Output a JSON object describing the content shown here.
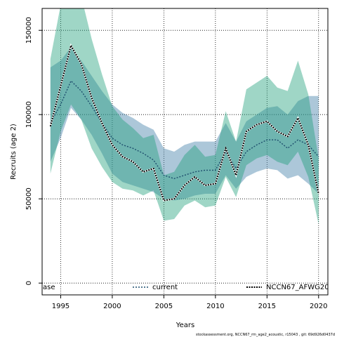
{
  "chart_data": {
    "type": "line",
    "title": "",
    "xlabel": "Years",
    "ylabel": "Recruits (age 2)",
    "xlim": [
      1993.2,
      2020.9
    ],
    "ylim": [
      -7000,
      163000
    ],
    "x_ticks": [
      1995,
      2000,
      2005,
      2010,
      2015,
      2020
    ],
    "y_ticks": [
      0,
      50000,
      100000,
      150000
    ],
    "grid": "dotted",
    "x": [
      1994,
      1995,
      1996,
      1997,
      1998,
      1999,
      2000,
      2001,
      2002,
      2003,
      2004,
      2005,
      2006,
      2007,
      2008,
      2009,
      2010,
      2011,
      2012,
      2013,
      2014,
      2015,
      2016,
      2017,
      2018,
      2019,
      2020
    ],
    "series": [
      {
        "name": "current",
        "color": "#377EB8",
        "values": [
          95000,
          106000,
          120000,
          114000,
          105000,
          95000,
          86000,
          82000,
          80000,
          77000,
          73000,
          64000,
          62000,
          64000,
          66000,
          67000,
          67000,
          78000,
          68000,
          78000,
          82000,
          85000,
          85000,
          80000,
          85000,
          82000,
          75000
        ],
        "lower": [
          72000,
          86000,
          104000,
          97000,
          88000,
          77000,
          65000,
          60000,
          58000,
          56000,
          54000,
          50000,
          49000,
          50000,
          52000,
          53000,
          53000,
          64000,
          56000,
          63000,
          66000,
          68000,
          67000,
          62000,
          64000,
          59000,
          53000
        ],
        "upper": [
          128000,
          132000,
          140000,
          132000,
          123000,
          114000,
          106000,
          101000,
          98000,
          94000,
          91000,
          80000,
          78000,
          82000,
          84000,
          84000,
          84000,
          95000,
          84000,
          96000,
          100000,
          104000,
          105000,
          100000,
          108000,
          111000,
          111000
        ]
      },
      {
        "name": "NCCN67_AFWG20",
        "color": "#1B9E77",
        "values": [
          93000,
          117000,
          141000,
          130000,
          110000,
          95000,
          82000,
          75000,
          72000,
          66000,
          68000,
          49000,
          50000,
          58000,
          63000,
          58000,
          59000,
          80000,
          64000,
          90000,
          94000,
          96000,
          90000,
          87000,
          98000,
          82000,
          53000
        ],
        "lower": [
          65000,
          90000,
          106000,
          97000,
          80000,
          69000,
          60000,
          56000,
          55000,
          52000,
          55000,
          37000,
          38000,
          46000,
          49000,
          45000,
          46000,
          63000,
          51000,
          70000,
          74000,
          76000,
          72000,
          70000,
          78000,
          63000,
          35000
        ],
        "upper": [
          133000,
          165000,
          172000,
          170000,
          145000,
          124000,
          105000,
          97000,
          92000,
          86000,
          88000,
          64000,
          66000,
          76000,
          82000,
          75000,
          76000,
          102000,
          84000,
          115000,
          119000,
          123000,
          116000,
          114000,
          132000,
          112000,
          74000
        ]
      }
    ],
    "legend": {
      "placement": "bottom",
      "entries": [
        "ase",
        "current",
        "NCCN67_AFWG20"
      ]
    },
    "footnote": "stockassessment.org, NCCN67_rm_age2_acoustic, r15043 , git: 69d926d0437d"
  }
}
